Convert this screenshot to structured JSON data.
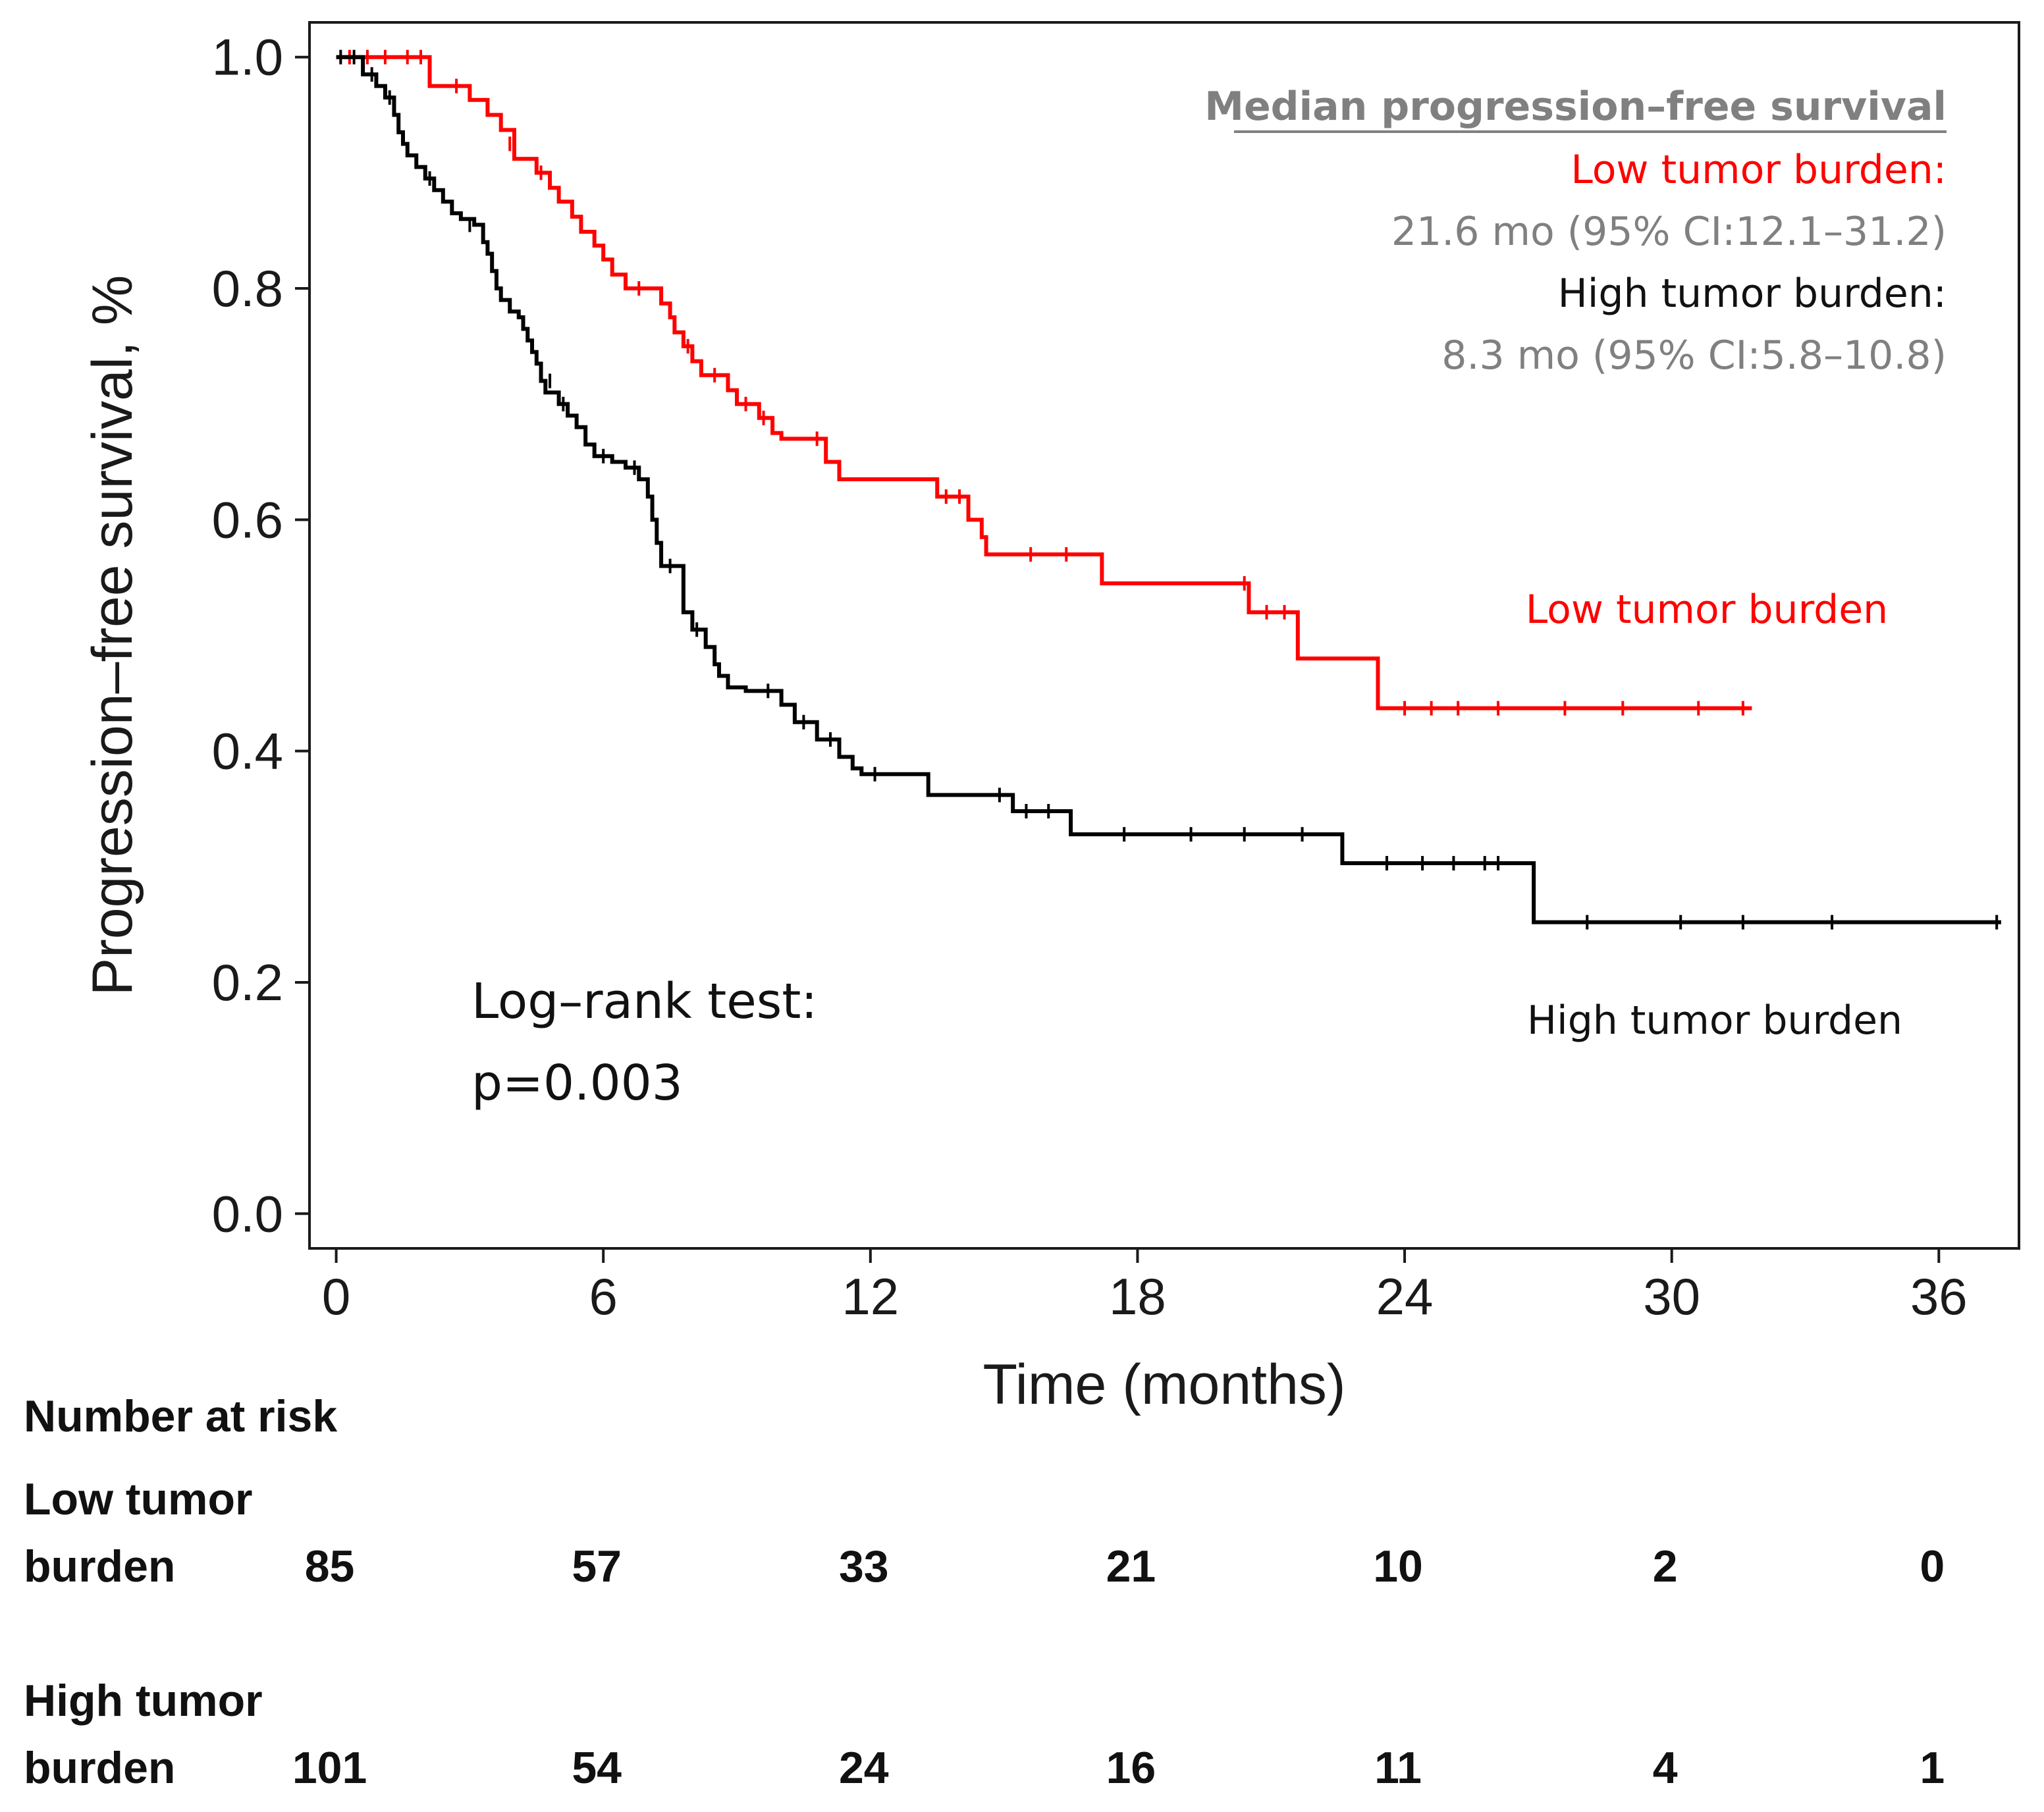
{
  "chart_data": {
    "type": "line",
    "subtype": "kaplan-meier",
    "xlabel": "Time (months)",
    "ylabel": "Progression–free survival, %",
    "xlim": [
      -0.6,
      37.8
    ],
    "ylim": [
      -0.03,
      1.03
    ],
    "xticks": [
      0,
      6,
      12,
      18,
      24,
      30,
      36
    ],
    "yticks": [
      {
        "value": 0.0,
        "label": "0.0"
      },
      {
        "value": 0.2,
        "label": "0.2"
      },
      {
        "value": 0.4,
        "label": "0.4"
      },
      {
        "value": 0.6,
        "label": "0.6"
      },
      {
        "value": 0.8,
        "label": "0.8"
      },
      {
        "value": 1.0,
        "label": "1.0"
      }
    ],
    "series": [
      {
        "name": "Low tumor burden",
        "color": "#ff0000",
        "steps": [
          [
            0,
            1.0
          ],
          [
            2.1,
            0.975
          ],
          [
            3.0,
            0.963
          ],
          [
            3.4,
            0.95
          ],
          [
            3.7,
            0.937
          ],
          [
            4.0,
            0.912
          ],
          [
            4.5,
            0.9
          ],
          [
            4.8,
            0.887
          ],
          [
            5.0,
            0.875
          ],
          [
            5.3,
            0.862
          ],
          [
            5.5,
            0.849
          ],
          [
            5.8,
            0.837
          ],
          [
            6.0,
            0.825
          ],
          [
            6.2,
            0.812
          ],
          [
            6.5,
            0.8
          ],
          [
            7.3,
            0.787
          ],
          [
            7.5,
            0.775
          ],
          [
            7.6,
            0.762
          ],
          [
            7.8,
            0.75
          ],
          [
            8.0,
            0.737
          ],
          [
            8.2,
            0.725
          ],
          [
            8.8,
            0.712
          ],
          [
            9.0,
            0.7
          ],
          [
            9.5,
            0.688
          ],
          [
            9.8,
            0.675
          ],
          [
            10.0,
            0.67
          ],
          [
            11.0,
            0.65
          ],
          [
            11.3,
            0.635
          ],
          [
            13.5,
            0.62
          ],
          [
            14.2,
            0.6
          ],
          [
            14.5,
            0.585
          ],
          [
            14.6,
            0.57
          ],
          [
            17.2,
            0.545
          ],
          [
            20.5,
            0.52
          ],
          [
            21.6,
            0.48
          ],
          [
            23.4,
            0.437
          ],
          [
            31.8,
            0.437
          ]
        ],
        "censor": [
          [
            0.3,
            1.0
          ],
          [
            0.7,
            1.0
          ],
          [
            1.1,
            1.0
          ],
          [
            1.6,
            1.0
          ],
          [
            1.9,
            1.0
          ],
          [
            2.7,
            0.975
          ],
          [
            3.9,
            0.925
          ],
          [
            4.6,
            0.9
          ],
          [
            6.8,
            0.8
          ],
          [
            7.9,
            0.75
          ],
          [
            8.5,
            0.725
          ],
          [
            9.2,
            0.7
          ],
          [
            9.6,
            0.688
          ],
          [
            10.8,
            0.67
          ],
          [
            13.7,
            0.62
          ],
          [
            14.0,
            0.62
          ],
          [
            15.6,
            0.57
          ],
          [
            16.4,
            0.57
          ],
          [
            20.4,
            0.545
          ],
          [
            20.9,
            0.52
          ],
          [
            21.3,
            0.52
          ],
          [
            24.0,
            0.437
          ],
          [
            24.6,
            0.437
          ],
          [
            25.2,
            0.437
          ],
          [
            26.1,
            0.437
          ],
          [
            27.6,
            0.437
          ],
          [
            28.9,
            0.437
          ],
          [
            30.6,
            0.437
          ],
          [
            31.6,
            0.437
          ]
        ]
      },
      {
        "name": "High tumor burden",
        "color": "#000000",
        "steps": [
          [
            0,
            1.0
          ],
          [
            0.6,
            0.985
          ],
          [
            0.9,
            0.975
          ],
          [
            1.1,
            0.965
          ],
          [
            1.3,
            0.95
          ],
          [
            1.4,
            0.935
          ],
          [
            1.5,
            0.925
          ],
          [
            1.6,
            0.915
          ],
          [
            1.8,
            0.905
          ],
          [
            2.0,
            0.895
          ],
          [
            2.2,
            0.885
          ],
          [
            2.4,
            0.875
          ],
          [
            2.6,
            0.865
          ],
          [
            2.8,
            0.86
          ],
          [
            3.1,
            0.855
          ],
          [
            3.3,
            0.84
          ],
          [
            3.4,
            0.83
          ],
          [
            3.5,
            0.815
          ],
          [
            3.6,
            0.8
          ],
          [
            3.7,
            0.79
          ],
          [
            3.9,
            0.78
          ],
          [
            4.1,
            0.775
          ],
          [
            4.2,
            0.765
          ],
          [
            4.3,
            0.755
          ],
          [
            4.4,
            0.745
          ],
          [
            4.5,
            0.735
          ],
          [
            4.6,
            0.72
          ],
          [
            4.7,
            0.71
          ],
          [
            5.0,
            0.7
          ],
          [
            5.2,
            0.69
          ],
          [
            5.4,
            0.68
          ],
          [
            5.6,
            0.665
          ],
          [
            5.8,
            0.655
          ],
          [
            6.2,
            0.65
          ],
          [
            6.5,
            0.645
          ],
          [
            6.8,
            0.635
          ],
          [
            7.0,
            0.62
          ],
          [
            7.1,
            0.6
          ],
          [
            7.2,
            0.58
          ],
          [
            7.3,
            0.56
          ],
          [
            7.8,
            0.52
          ],
          [
            8.0,
            0.505
          ],
          [
            8.3,
            0.49
          ],
          [
            8.5,
            0.475
          ],
          [
            8.6,
            0.465
          ],
          [
            8.8,
            0.455
          ],
          [
            9.2,
            0.452
          ],
          [
            10.0,
            0.44
          ],
          [
            10.3,
            0.425
          ],
          [
            10.8,
            0.41
          ],
          [
            11.3,
            0.395
          ],
          [
            11.6,
            0.385
          ],
          [
            11.8,
            0.38
          ],
          [
            13.3,
            0.362
          ],
          [
            15.2,
            0.348
          ],
          [
            16.5,
            0.328
          ],
          [
            22.6,
            0.303
          ],
          [
            26.9,
            0.252
          ],
          [
            37.4,
            0.252
          ]
        ],
        "censor": [
          [
            0.1,
            1.0
          ],
          [
            0.4,
            1.0
          ],
          [
            0.8,
            0.985
          ],
          [
            1.2,
            0.965
          ],
          [
            2.1,
            0.895
          ],
          [
            3.0,
            0.855
          ],
          [
            4.8,
            0.72
          ],
          [
            5.1,
            0.7
          ],
          [
            6.0,
            0.655
          ],
          [
            6.7,
            0.645
          ],
          [
            7.5,
            0.56
          ],
          [
            8.1,
            0.505
          ],
          [
            9.7,
            0.452
          ],
          [
            10.5,
            0.425
          ],
          [
            11.1,
            0.41
          ],
          [
            12.1,
            0.38
          ],
          [
            14.9,
            0.362
          ],
          [
            15.5,
            0.348
          ],
          [
            16.0,
            0.348
          ],
          [
            17.7,
            0.328
          ],
          [
            19.2,
            0.328
          ],
          [
            20.4,
            0.328
          ],
          [
            21.7,
            0.328
          ],
          [
            23.6,
            0.303
          ],
          [
            24.4,
            0.303
          ],
          [
            25.1,
            0.303
          ],
          [
            25.8,
            0.303
          ],
          [
            26.1,
            0.303
          ],
          [
            28.1,
            0.252
          ],
          [
            30.2,
            0.252
          ],
          [
            31.6,
            0.252
          ],
          [
            33.6,
            0.252
          ],
          [
            37.3,
            0.252
          ]
        ]
      }
    ],
    "annotations": {
      "median_heading": "Median progression–free  survival",
      "low_label": "Low tumor burden:",
      "low_value": "21.6 mo (95% CI:12.1–31.2)",
      "high_label": "High tumor burden:",
      "high_value": "8.3 mo (95% CI:5.8–10.8)",
      "low_curve_label": "Low tumor burden",
      "high_curve_label": "High tumor burden",
      "logrank_line1": "Log–rank test:",
      "logrank_line2": "p=0.003"
    },
    "risk_table": {
      "title": "Number at risk",
      "rows": [
        {
          "label_line1": "Low tumor",
          "label_line2": "burden",
          "values": [
            "85",
            "57",
            "33",
            "21",
            "10",
            "2",
            "0"
          ]
        },
        {
          "label_line1": "High tumor",
          "label_line2": "burden",
          "values": [
            "101",
            "54",
            "24",
            "16",
            "11",
            "4",
            "1"
          ]
        }
      ]
    },
    "colors": {
      "low": "#ff0000",
      "high": "#000000",
      "annotation_gray": "#808080",
      "axis": "#1a1a1a"
    }
  }
}
